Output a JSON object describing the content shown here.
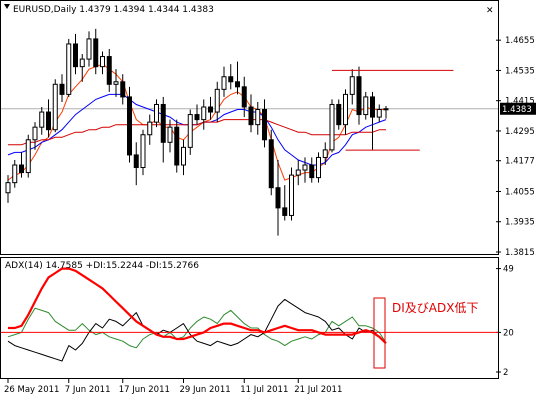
{
  "window": {
    "symbol_title": "EURUSD,Daily  1.4379 1.4394 1.4344 1.4383",
    "close_icon_glyph": "✕"
  },
  "price_panel": {
    "current_price_label": "1.4383",
    "price_axis_labels": [
      "1.4655",
      "1.4535",
      "1.4415",
      "1.4295",
      "1.4177",
      "1.4055",
      "1.3935",
      "1.3815"
    ]
  },
  "adx_panel": {
    "indicator_label": "ADX(14) 14.7585 +DI:15.2244 -DI:15.2766",
    "axis_labels": [
      "49",
      "20",
      "2"
    ],
    "annotation_text": "DI及びADX低下"
  },
  "time_axis": {
    "labels": [
      "26 May 2011",
      "7 Jun 2011",
      "17 Jun 2011",
      "29 Jun 2011",
      "11 Jul 2011",
      "21 Jul 2011"
    ]
  },
  "colors": {
    "background": "#ffffff",
    "candle_body": "#000000",
    "ma_fast": "#ff3c00",
    "ma_mid": "#0000ff",
    "ma_slow": "#d40000",
    "adx_line": "#ff0000",
    "plus_di": "#2e8b2e",
    "minus_di": "#000000",
    "level_20": "#ff0000",
    "annotation": "#e00000",
    "price_label_bg": "#000000"
  },
  "chart_data": [
    {
      "type": "candlestick",
      "title": "EURUSD,Daily  1.4379 1.4394 1.4344 1.4383",
      "x_range": [
        "2011-05-23",
        "2011-07-28"
      ],
      "ylim": [
        1.3815,
        1.4735
      ],
      "horizontal_levels": [
        1.4535,
        1.4219
      ],
      "series": [
        {
          "name": "",
          "type": "candlestick",
          "values": [
            [
              1.405,
              1.412,
              1.401,
              1.409
            ],
            [
              1.409,
              1.418,
              1.407,
              1.416
            ],
            [
              1.416,
              1.421,
              1.411,
              1.413
            ],
            [
              1.413,
              1.428,
              1.411,
              1.426
            ],
            [
              1.426,
              1.433,
              1.422,
              1.431
            ],
            [
              1.431,
              1.439,
              1.428,
              1.437
            ],
            [
              1.437,
              1.442,
              1.427,
              1.43
            ],
            [
              1.43,
              1.45,
              1.429,
              1.448
            ],
            [
              1.448,
              1.452,
              1.441,
              1.444
            ],
            [
              1.444,
              1.466,
              1.443,
              1.464
            ],
            [
              1.464,
              1.468,
              1.452,
              1.455
            ],
            [
              1.455,
              1.46,
              1.449,
              1.458
            ],
            [
              1.458,
              1.469,
              1.455,
              1.466
            ],
            [
              1.466,
              1.47,
              1.452,
              1.455
            ],
            [
              1.455,
              1.461,
              1.452,
              1.459
            ],
            [
              1.459,
              1.462,
              1.445,
              1.448
            ],
            [
              1.448,
              1.454,
              1.443,
              1.449
            ],
            [
              1.449,
              1.452,
              1.44,
              1.443
            ],
            [
              1.443,
              1.447,
              1.417,
              1.42
            ],
            [
              1.42,
              1.425,
              1.408,
              1.415
            ],
            [
              1.415,
              1.43,
              1.412,
              1.428
            ],
            [
              1.428,
              1.436,
              1.424,
              1.433
            ],
            [
              1.433,
              1.442,
              1.431,
              1.44
            ],
            [
              1.44,
              1.443,
              1.417,
              1.425
            ],
            [
              1.425,
              1.434,
              1.421,
              1.431
            ],
            [
              1.431,
              1.434,
              1.413,
              1.416
            ],
            [
              1.416,
              1.426,
              1.412,
              1.423
            ],
            [
              1.423,
              1.438,
              1.42,
              1.436
            ],
            [
              1.436,
              1.44,
              1.432,
              1.434
            ],
            [
              1.434,
              1.442,
              1.43,
              1.439
            ],
            [
              1.439,
              1.443,
              1.434,
              1.437
            ],
            [
              1.437,
              1.449,
              1.433,
              1.446
            ],
            [
              1.446,
              1.455,
              1.443,
              1.451
            ],
            [
              1.451,
              1.456,
              1.446,
              1.449
            ],
            [
              1.449,
              1.457,
              1.444,
              1.447
            ],
            [
              1.447,
              1.451,
              1.435,
              1.439
            ],
            [
              1.439,
              1.444,
              1.429,
              1.432
            ],
            [
              1.432,
              1.441,
              1.428,
              1.438
            ],
            [
              1.438,
              1.442,
              1.423,
              1.426
            ],
            [
              1.426,
              1.43,
              1.404,
              1.407
            ],
            [
              1.407,
              1.418,
              1.388,
              1.399
            ],
            [
              1.399,
              1.408,
              1.394,
              1.396
            ],
            [
              1.396,
              1.415,
              1.394,
              1.412
            ],
            [
              1.412,
              1.418,
              1.408,
              1.414
            ],
            [
              1.414,
              1.419,
              1.409,
              1.416
            ],
            [
              1.416,
              1.419,
              1.409,
              1.411
            ],
            [
              1.411,
              1.421,
              1.409,
              1.419
            ],
            [
              1.419,
              1.425,
              1.416,
              1.422
            ],
            [
              1.422,
              1.442,
              1.421,
              1.44
            ],
            [
              1.44,
              1.442,
              1.43,
              1.432
            ],
            [
              1.432,
              1.446,
              1.428,
              1.444
            ],
            [
              1.444,
              1.454,
              1.44,
              1.451
            ],
            [
              1.451,
              1.455,
              1.432,
              1.436
            ],
            [
              1.436,
              1.445,
              1.434,
              1.443
            ],
            [
              1.443,
              1.445,
              1.422,
              1.435
            ],
            [
              1.435,
              1.44,
              1.433,
              1.438
            ],
            [
              1.4379,
              1.4394,
              1.4344,
              1.4383
            ]
          ]
        },
        {
          "name": "",
          "type": "line",
          "values": [
            1.41,
            1.412,
            1.413,
            1.416,
            1.42,
            1.425,
            1.427,
            1.433,
            1.437,
            1.444,
            1.447,
            1.45,
            1.454,
            1.455,
            1.456,
            1.454,
            1.452,
            1.449,
            1.441,
            1.434,
            1.432,
            1.432,
            1.434,
            1.431,
            1.431,
            1.427,
            1.426,
            1.429,
            1.431,
            1.433,
            1.434,
            1.438,
            1.442,
            1.444,
            1.445,
            1.443,
            1.439,
            1.438,
            1.435,
            1.426,
            1.417,
            1.41,
            1.411,
            1.412,
            1.413,
            1.413,
            1.415,
            1.417,
            1.425,
            1.427,
            1.432,
            1.438,
            1.437,
            1.439,
            1.438,
            1.438,
            1.438
          ]
        },
        {
          "name": "",
          "type": "line",
          "values": [
            1.42,
            1.421,
            1.421,
            1.422,
            1.423,
            1.425,
            1.426,
            1.428,
            1.43,
            1.433,
            1.436,
            1.438,
            1.44,
            1.442,
            1.443,
            1.444,
            1.444,
            1.444,
            1.442,
            1.44,
            1.439,
            1.438,
            1.437,
            1.436,
            1.435,
            1.433,
            1.432,
            1.432,
            1.432,
            1.433,
            1.433,
            1.434,
            1.436,
            1.437,
            1.438,
            1.438,
            1.437,
            1.437,
            1.435,
            1.431,
            1.426,
            1.422,
            1.42,
            1.418,
            1.417,
            1.416,
            1.416,
            1.417,
            1.42,
            1.421,
            1.424,
            1.428,
            1.429,
            1.431,
            1.432,
            1.433,
            1.434
          ]
        },
        {
          "name": "",
          "type": "line",
          "values": [
            1.424,
            1.424,
            1.424,
            1.425,
            1.425,
            1.426,
            1.426,
            1.427,
            1.427,
            1.428,
            1.429,
            1.429,
            1.43,
            1.43,
            1.431,
            1.431,
            1.432,
            1.432,
            1.432,
            1.432,
            1.432,
            1.432,
            1.432,
            1.432,
            1.432,
            1.432,
            1.432,
            1.432,
            1.432,
            1.433,
            1.433,
            1.433,
            1.434,
            1.434,
            1.434,
            1.434,
            1.434,
            1.434,
            1.434,
            1.433,
            1.432,
            1.431,
            1.43,
            1.429,
            1.429,
            1.428,
            1.428,
            1.428,
            1.428,
            1.428,
            1.428,
            1.429,
            1.429,
            1.429,
            1.429,
            1.43,
            1.43
          ]
        }
      ]
    },
    {
      "type": "line",
      "title": "ADX(14) 14.7585 +DI:15.2244 -DI:15.2766",
      "ylim": [
        2,
        49
      ],
      "horizontal_levels": [
        20
      ],
      "series": [
        {
          "name": "ADX",
          "values": [
            22,
            22,
            23,
            28,
            34,
            40,
            45,
            47,
            49,
            49,
            48,
            46,
            44,
            42,
            40,
            37,
            34,
            31,
            28,
            25,
            23,
            21,
            19,
            18,
            18,
            17,
            17,
            18,
            19,
            20,
            22,
            23,
            24,
            24,
            23,
            22,
            21,
            21,
            20,
            21,
            22,
            23,
            22,
            21,
            21,
            21,
            20,
            19,
            19,
            19,
            19,
            19,
            20,
            21,
            20,
            18,
            15
          ]
        },
        {
          "name": "+DI",
          "values": [
            18,
            19,
            20,
            26,
            31,
            30,
            29,
            25,
            23,
            21,
            21,
            24,
            21,
            19,
            20,
            18,
            17,
            16,
            14,
            13,
            17,
            19,
            20,
            18,
            20,
            17,
            18,
            22,
            25,
            27,
            26,
            24,
            28,
            30,
            27,
            24,
            22,
            22,
            19,
            17,
            16,
            14,
            16,
            17,
            18,
            17,
            19,
            20,
            25,
            23,
            25,
            27,
            23,
            23,
            22,
            20,
            15.2244
          ]
        },
        {
          "name": "-DI",
          "values": [
            16,
            14,
            13,
            12,
            11,
            10,
            9,
            8,
            7,
            14,
            12,
            15,
            20,
            24,
            22,
            26,
            25,
            23,
            26,
            29,
            23,
            21,
            19,
            21,
            20,
            22,
            24,
            19,
            16,
            15,
            14,
            16,
            15,
            14,
            15,
            17,
            19,
            18,
            20,
            26,
            32,
            35,
            33,
            31,
            29,
            28,
            27,
            25,
            21,
            22,
            19,
            17,
            22,
            20,
            21,
            18,
            15.2766
          ]
        }
      ]
    }
  ]
}
